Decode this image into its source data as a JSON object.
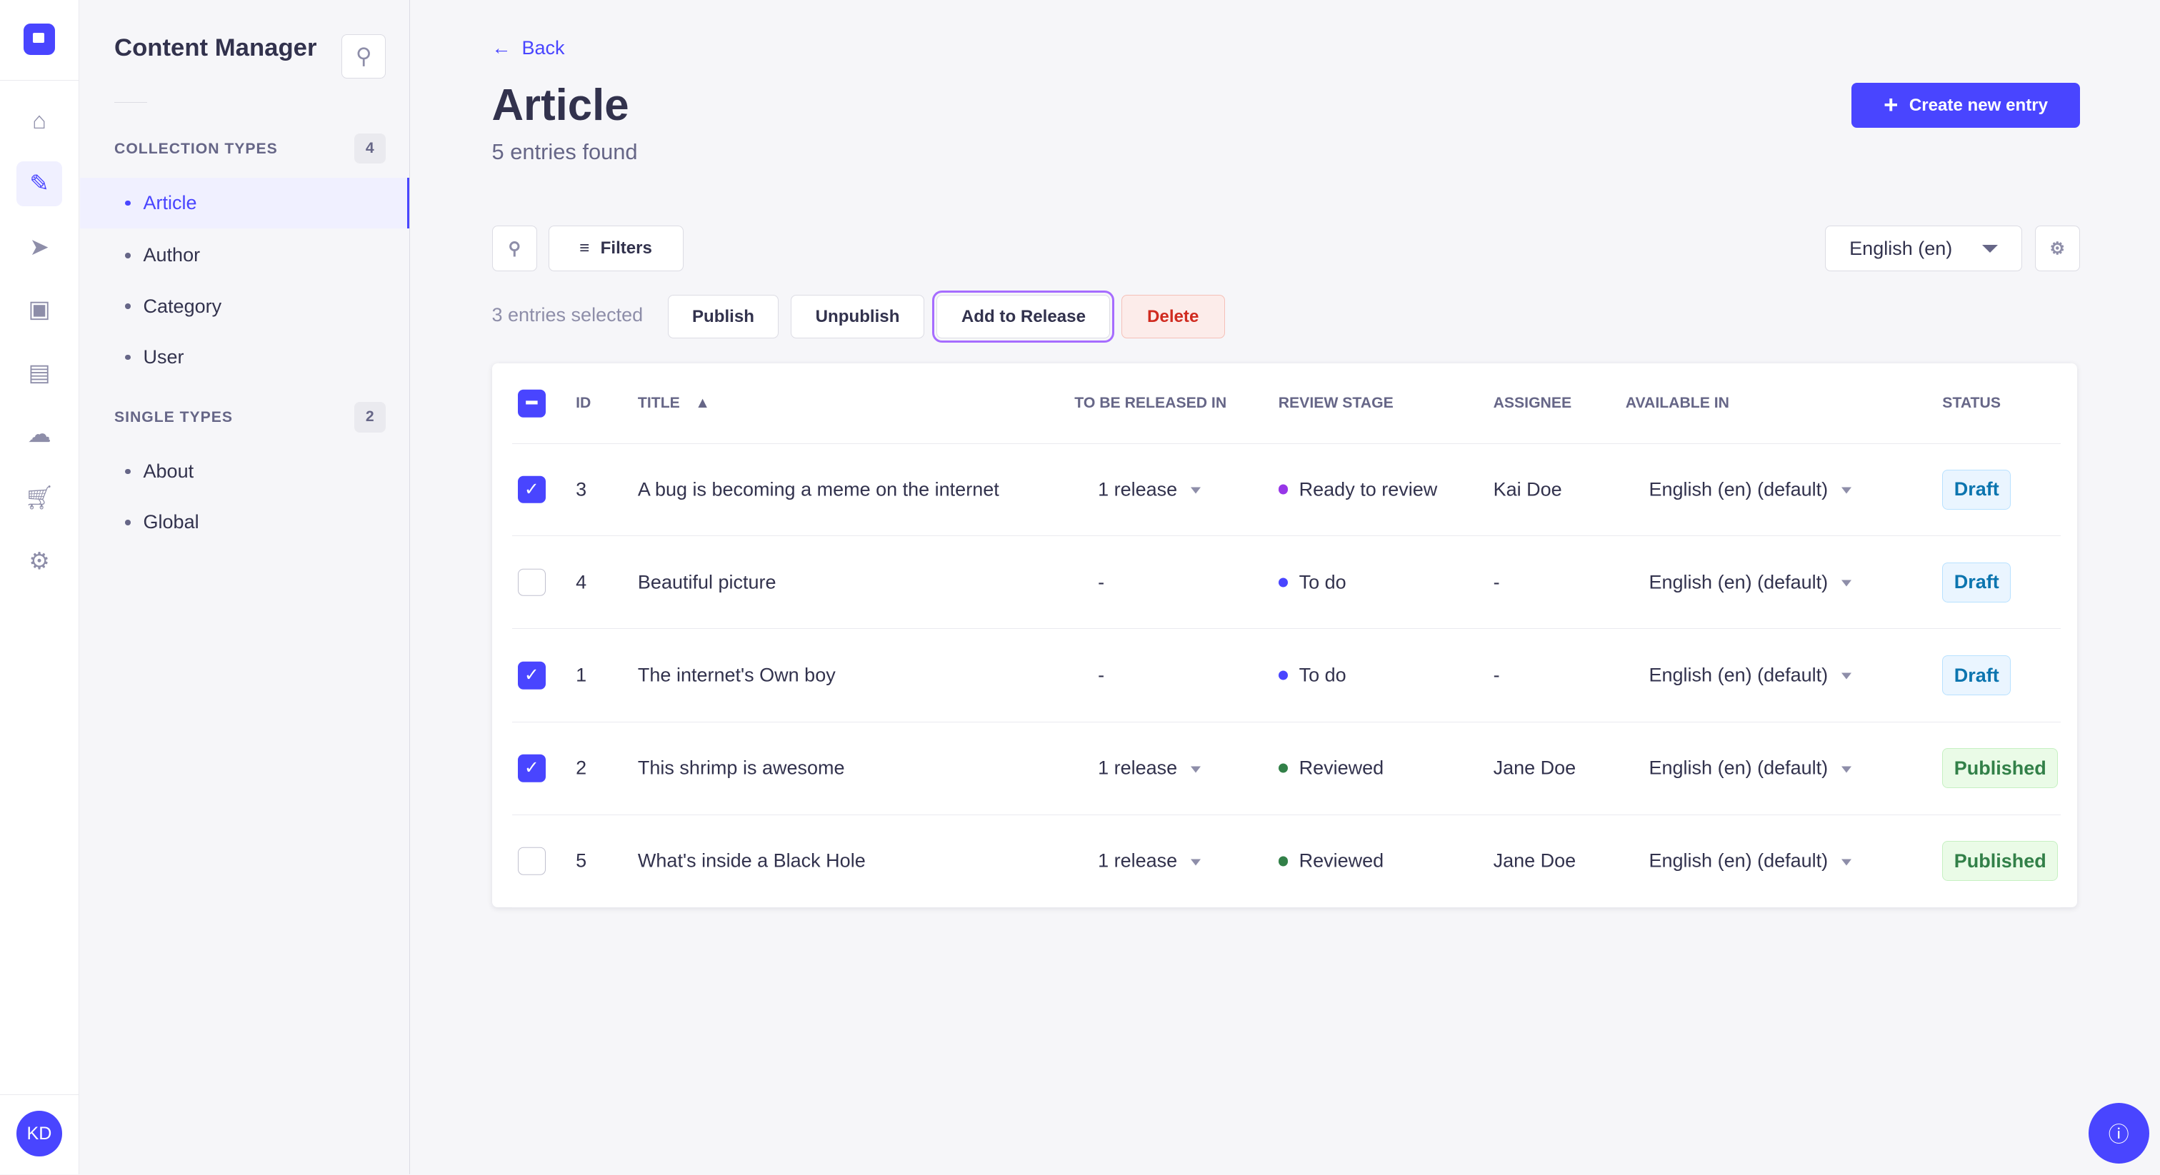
{
  "rail": {
    "avatar": "KD",
    "items": [
      "home-icon",
      "feather-icon",
      "paper-plane-icon",
      "media-icon",
      "layout-icon",
      "cloud-icon",
      "cart-icon",
      "gear-icon"
    ]
  },
  "sidebar": {
    "title": "Content Manager",
    "collection_label": "COLLECTION TYPES",
    "collection_count": "4",
    "collection_items": [
      "Article",
      "Author",
      "Category",
      "User"
    ],
    "single_label": "SINGLE TYPES",
    "single_count": "2",
    "single_items": [
      "About",
      "Global"
    ]
  },
  "header": {
    "back": "Back",
    "title": "Article",
    "subtitle": "5 entries found",
    "create": "Create new entry"
  },
  "toolbar": {
    "filters": "Filters",
    "locale": "English (en)"
  },
  "bulk": {
    "selected": "3 entries selected",
    "publish": "Publish",
    "unpublish": "Unpublish",
    "add_to_release": "Add to Release",
    "delete": "Delete"
  },
  "table": {
    "headers": [
      "ID",
      "TITLE",
      "TO BE RELEASED IN",
      "REVIEW STAGE",
      "ASSIGNEE",
      "AVAILABLE IN",
      "STATUS"
    ],
    "rows": [
      {
        "checked": true,
        "id": "3",
        "title": "A bug is becoming a meme on the internet",
        "release": "1 release",
        "stage": "Ready to review",
        "stage_color": "#9736e8",
        "assignee": "Kai Doe",
        "available": "English (en) (default)",
        "status": "Draft"
      },
      {
        "checked": false,
        "id": "4",
        "title": "Beautiful picture",
        "release": "-",
        "stage": "To do",
        "stage_color": "#4945ff",
        "assignee": "-",
        "available": "English (en) (default)",
        "status": "Draft"
      },
      {
        "checked": true,
        "id": "1",
        "title": "The internet's Own boy",
        "release": "-",
        "stage": "To do",
        "stage_color": "#4945ff",
        "assignee": "-",
        "available": "English (en) (default)",
        "status": "Draft"
      },
      {
        "checked": true,
        "id": "2",
        "title": "This shrimp is awesome",
        "release": "1 release",
        "stage": "Reviewed",
        "stage_color": "#328048",
        "assignee": "Jane Doe",
        "available": "English (en) (default)",
        "status": "Published"
      },
      {
        "checked": false,
        "id": "5",
        "title": "What's inside a Black Hole",
        "release": "1 release",
        "stage": "Reviewed",
        "stage_color": "#328048",
        "assignee": "Jane Doe",
        "available": "English (en) (default)",
        "status": "Published"
      }
    ]
  },
  "colors": {
    "primary": "#4945ff",
    "danger": "#d02b20",
    "highlight": "#a66cff"
  }
}
